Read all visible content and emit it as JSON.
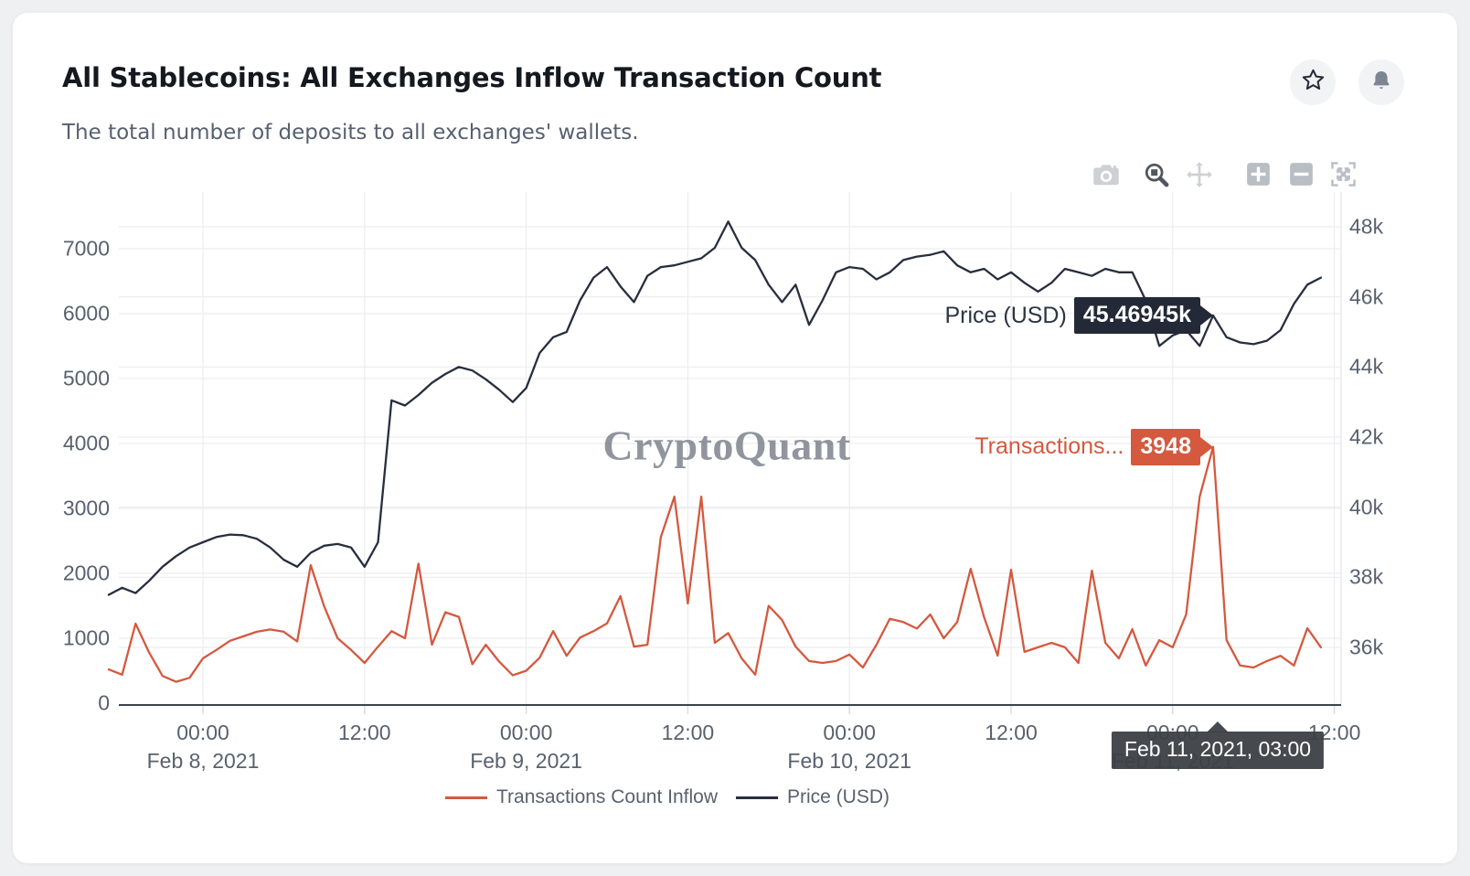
{
  "page": {
    "title": "All Stablecoins: All Exchanges Inflow Transaction Count",
    "subtitle": "The total number of deposits to all exchanges' wallets."
  },
  "header_actions": {
    "favorite_icon": "star-icon",
    "notification_icon": "bell-icon"
  },
  "toolbar": {
    "buttons": [
      {
        "name": "download-png",
        "icon": "camera-icon",
        "active": false
      },
      {
        "name": "zoom-mode",
        "icon": "zoom-box-icon",
        "active": true
      },
      {
        "name": "pan-mode",
        "icon": "pan-icon",
        "active": false
      },
      {
        "name": "zoom-in",
        "icon": "zoom-in-icon",
        "active": false
      },
      {
        "name": "zoom-out",
        "icon": "zoom-out-icon",
        "active": false
      },
      {
        "name": "autoscale",
        "icon": "autoscale-icon",
        "active": false
      }
    ]
  },
  "watermark": "CryptoQuant",
  "hover": {
    "date_label": "Feb 11, 2021, 03:00",
    "price_label": "Price (USD)",
    "price_value": "45.46945k",
    "price_badge_color": "#232936",
    "price_label_color": "#2d3542",
    "transactions_label": "Transactions...",
    "transactions_value": "3948",
    "transactions_color": "#d4593f"
  },
  "legend": {
    "items": [
      {
        "label": "Transactions Count Inflow",
        "color": "#d4593f"
      },
      {
        "label": "Price (USD)",
        "color": "#272e3e"
      }
    ]
  },
  "chart_data": {
    "type": "line",
    "title": "All Stablecoins: All Exchanges Inflow Transaction Count",
    "x_start": "Feb 7, 2021 17:00",
    "x_step_hours": 1,
    "x_ticks": [
      {
        "time": "00:00",
        "date": "Feb 8, 2021"
      },
      {
        "time": "12:00",
        "date": ""
      },
      {
        "time": "00:00",
        "date": "Feb 9, 2021"
      },
      {
        "time": "12:00",
        "date": ""
      },
      {
        "time": "00:00",
        "date": "Feb 10, 2021"
      },
      {
        "time": "12:00",
        "date": ""
      },
      {
        "time": "00:00",
        "date": "Feb 11, 2021"
      },
      {
        "time": "12:00",
        "date": ""
      }
    ],
    "left_axis": {
      "ticks": [
        0,
        1000,
        2000,
        3000,
        4000,
        5000,
        6000,
        7000
      ],
      "range": [
        0,
        7870
      ],
      "grid": true
    },
    "right_axis": {
      "ticks": [
        "36k",
        "38k",
        "40k",
        "42k",
        "44k",
        "46k",
        "48k"
      ],
      "range_usd": [
        34300,
        48990
      ],
      "grid": true
    },
    "legend_position": "bottom-center",
    "hover_index": 82,
    "series": [
      {
        "name": "Transactions Count Inflow",
        "axis": "left",
        "color": "#d4593f",
        "values": [
          520,
          440,
          1225,
          780,
          420,
          330,
          390,
          690,
          820,
          960,
          1030,
          1100,
          1135,
          1100,
          950,
          2126,
          1490,
          1000,
          820,
          620,
          870,
          1110,
          1000,
          2150,
          900,
          1400,
          1330,
          600,
          900,
          640,
          430,
          500,
          700,
          1110,
          730,
          1010,
          1110,
          1230,
          1650,
          870,
          900,
          2560,
          3182,
          1535,
          3182,
          930,
          1080,
          690,
          440,
          1500,
          1280,
          870,
          650,
          620,
          650,
          750,
          550,
          900,
          1300,
          1250,
          1150,
          1366,
          1000,
          1250,
          2070,
          1323,
          732,
          2056,
          790,
          860,
          930,
          860,
          620,
          2042,
          930,
          690,
          1140,
          580,
          970,
          860,
          1366,
          3182,
          3948,
          970,
          580,
          550,
          650,
          730,
          580,
          1155,
          860
        ]
      },
      {
        "name": "Price (USD)",
        "axis": "right",
        "color": "#272e3e",
        "values": [
          37500,
          37700,
          37550,
          37900,
          38300,
          38600,
          38850,
          39000,
          39150,
          39220,
          39200,
          39100,
          38850,
          38500,
          38300,
          38700,
          38900,
          38950,
          38850,
          38300,
          39000,
          43050,
          42900,
          43200,
          43550,
          43800,
          44000,
          43900,
          43650,
          43350,
          43000,
          43400,
          44400,
          44850,
          45000,
          45900,
          46550,
          46850,
          46300,
          45850,
          46600,
          46850,
          46900,
          47000,
          47100,
          47400,
          48150,
          47400,
          47050,
          46350,
          45850,
          46350,
          45200,
          45900,
          46700,
          46850,
          46800,
          46500,
          46700,
          47050,
          47150,
          47200,
          47300,
          46900,
          46700,
          46800,
          46500,
          46700,
          46400,
          46150,
          46400,
          46800,
          46700,
          46600,
          46800,
          46700,
          46700,
          45900,
          44600,
          44900,
          45050,
          44600,
          45469.45,
          44850,
          44700,
          44650,
          44750,
          45050,
          45800,
          46350,
          46550
        ]
      }
    ]
  }
}
